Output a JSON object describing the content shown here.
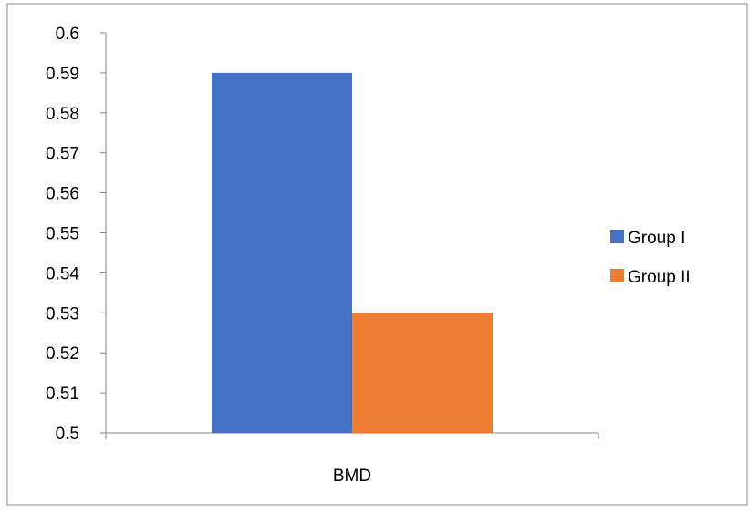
{
  "chart_data": {
    "type": "bar",
    "title": "",
    "xlabel": "",
    "ylabel": "",
    "categories": [
      "BMD"
    ],
    "series": [
      {
        "name": "Group I",
        "values": [
          0.59
        ],
        "color": "#4472C4"
      },
      {
        "name": "Group II",
        "values": [
          0.53
        ],
        "color": "#ED7D31"
      }
    ],
    "ylim": [
      0.5,
      0.6
    ],
    "yticks": [
      0.5,
      0.51,
      0.52,
      0.53,
      0.54,
      0.55,
      0.56,
      0.57,
      0.58,
      0.59,
      0.6
    ],
    "ytick_labels": [
      "0.5",
      "0.51",
      "0.52",
      "0.53",
      "0.54",
      "0.55",
      "0.56",
      "0.57",
      "0.58",
      "0.59",
      "0.6"
    ],
    "grid": false,
    "legend": {
      "position": "right"
    }
  }
}
